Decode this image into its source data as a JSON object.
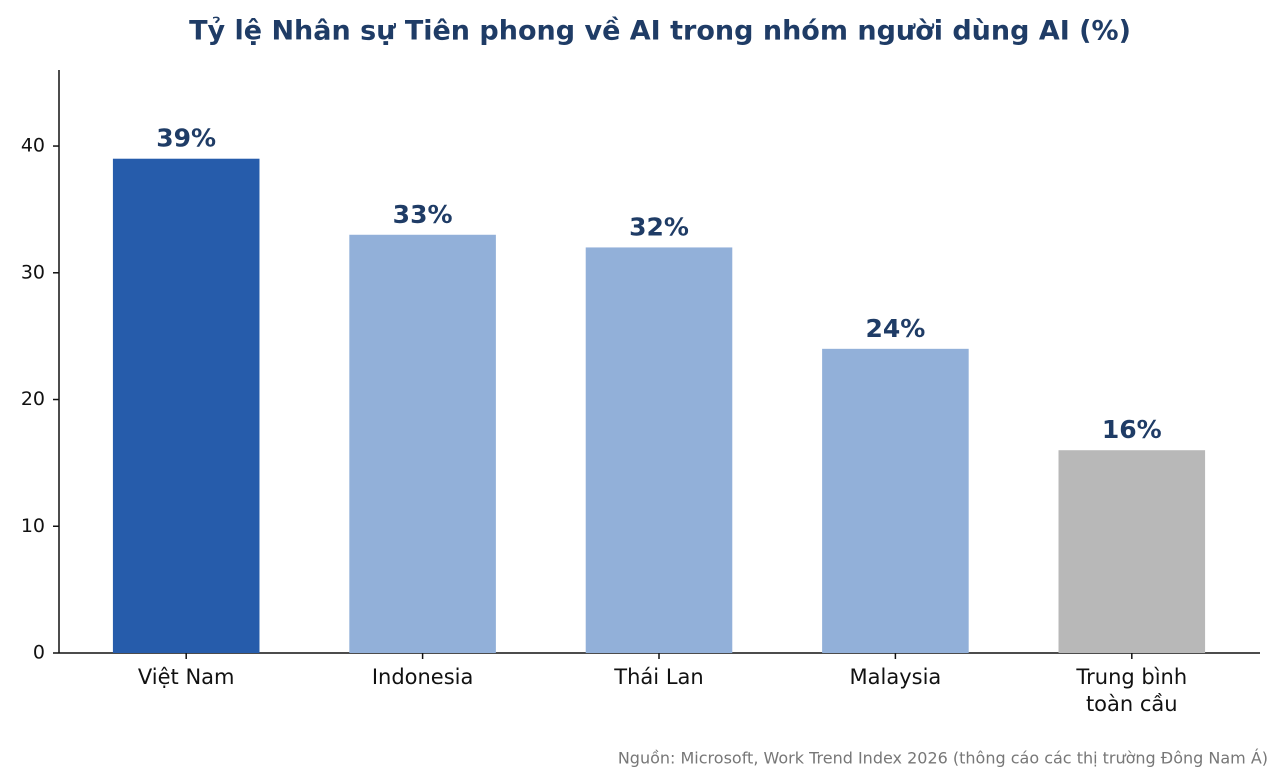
{
  "chart_data": {
    "type": "bar",
    "title": "Tỷ lệ Nhân sự Tiên phong về AI trong nhóm người dùng AI (%)",
    "categories": [
      "Việt Nam",
      "Indonesia",
      "Thái Lan",
      "Malaysia",
      "Trung bình\ntoàn cầu"
    ],
    "values": [
      39,
      33,
      32,
      24,
      16
    ],
    "value_labels": [
      "39%",
      "33%",
      "32%",
      "24%",
      "16%"
    ],
    "colors": [
      "#265cab",
      "#92b0d9",
      "#92b0d9",
      "#92b0d9",
      "#b8b8b8"
    ],
    "ylim": [
      0,
      46
    ],
    "yticks": [
      0,
      10,
      20,
      30,
      40
    ],
    "grid": false,
    "source": "Nguồn: Microsoft, Work Trend Index 2026 (thông cáo các thị trường Đông Nam Á)"
  }
}
